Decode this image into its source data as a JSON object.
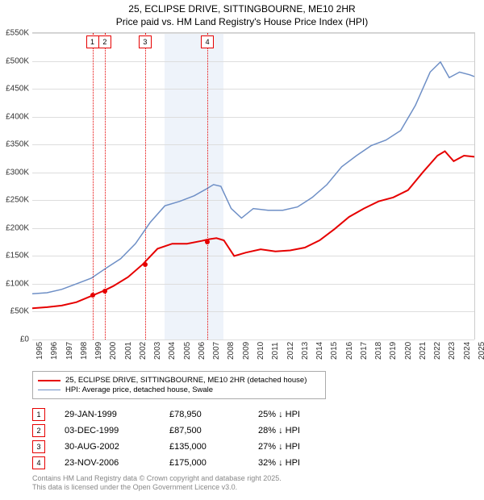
{
  "title_line1": "25, ECLIPSE DRIVE, SITTINGBOURNE, ME10 2HR",
  "title_line2": "Price paid vs. HM Land Registry's House Price Index (HPI)",
  "chart": {
    "type": "line",
    "background_color": "#ffffff",
    "grid_color": "#dddddd",
    "band_color": "#eef3fa",
    "x_years": [
      1995,
      1996,
      1997,
      1998,
      1999,
      2000,
      2001,
      2002,
      2003,
      2004,
      2005,
      2006,
      2007,
      2008,
      2009,
      2010,
      2011,
      2012,
      2013,
      2014,
      2015,
      2016,
      2017,
      2018,
      2019,
      2020,
      2021,
      2022,
      2023,
      2024,
      2025
    ],
    "ylim": [
      0,
      550000
    ],
    "ytick_step": 50000,
    "ytick_labels": [
      "£0",
      "£50K",
      "£100K",
      "£150K",
      "£200K",
      "£250K",
      "£300K",
      "£350K",
      "£400K",
      "£450K",
      "£500K",
      "£550K"
    ],
    "band_years": [
      2004,
      2005,
      2006,
      2007
    ],
    "series": [
      {
        "name": "property",
        "label": "25, ECLIPSE DRIVE, SITTINGBOURNE, ME10 2HR (detached house)",
        "color": "#e60000",
        "line_width": 2,
        "points": [
          [
            1995.0,
            56000
          ],
          [
            1996.0,
            58000
          ],
          [
            1997.0,
            61000
          ],
          [
            1998.0,
            67000
          ],
          [
            1999.0,
            78000
          ],
          [
            1999.9,
            88000
          ],
          [
            2000.5,
            96000
          ],
          [
            2001.5,
            112000
          ],
          [
            2002.5,
            135000
          ],
          [
            2003.5,
            163000
          ],
          [
            2004.5,
            172000
          ],
          [
            2005.5,
            172000
          ],
          [
            2006.5,
            177000
          ],
          [
            2007.0,
            180000
          ],
          [
            2007.5,
            182000
          ],
          [
            2008.0,
            178000
          ],
          [
            2008.7,
            150000
          ],
          [
            2009.5,
            156000
          ],
          [
            2010.5,
            162000
          ],
          [
            2011.5,
            158000
          ],
          [
            2012.5,
            160000
          ],
          [
            2013.5,
            165000
          ],
          [
            2014.5,
            178000
          ],
          [
            2015.5,
            198000
          ],
          [
            2016.5,
            220000
          ],
          [
            2017.5,
            235000
          ],
          [
            2018.5,
            248000
          ],
          [
            2019.5,
            255000
          ],
          [
            2020.5,
            268000
          ],
          [
            2021.5,
            300000
          ],
          [
            2022.5,
            330000
          ],
          [
            2023.0,
            338000
          ],
          [
            2023.6,
            320000
          ],
          [
            2024.3,
            330000
          ],
          [
            2025.0,
            328000
          ]
        ]
      },
      {
        "name": "hpi",
        "label": "HPI: Average price, detached house, Swale",
        "color": "#6e8fc6",
        "line_width": 1.5,
        "points": [
          [
            1995.0,
            82000
          ],
          [
            1996.0,
            84000
          ],
          [
            1997.0,
            90000
          ],
          [
            1998.0,
            100000
          ],
          [
            1999.0,
            110000
          ],
          [
            2000.0,
            128000
          ],
          [
            2001.0,
            145000
          ],
          [
            2002.0,
            172000
          ],
          [
            2003.0,
            210000
          ],
          [
            2004.0,
            240000
          ],
          [
            2005.0,
            248000
          ],
          [
            2006.0,
            258000
          ],
          [
            2006.8,
            270000
          ],
          [
            2007.3,
            278000
          ],
          [
            2007.8,
            275000
          ],
          [
            2008.5,
            235000
          ],
          [
            2009.2,
            218000
          ],
          [
            2010.0,
            235000
          ],
          [
            2011.0,
            232000
          ],
          [
            2012.0,
            232000
          ],
          [
            2013.0,
            238000
          ],
          [
            2014.0,
            255000
          ],
          [
            2015.0,
            278000
          ],
          [
            2016.0,
            310000
          ],
          [
            2017.0,
            330000
          ],
          [
            2018.0,
            348000
          ],
          [
            2019.0,
            358000
          ],
          [
            2020.0,
            375000
          ],
          [
            2021.0,
            420000
          ],
          [
            2022.0,
            480000
          ],
          [
            2022.7,
            498000
          ],
          [
            2023.3,
            470000
          ],
          [
            2024.0,
            480000
          ],
          [
            2024.7,
            475000
          ],
          [
            2025.0,
            472000
          ]
        ]
      }
    ],
    "sales": [
      {
        "idx": "1",
        "year": 1999.08,
        "price": 78950
      },
      {
        "idx": "2",
        "year": 1999.92,
        "price": 87500
      },
      {
        "idx": "3",
        "year": 2002.66,
        "price": 135000
      },
      {
        "idx": "4",
        "year": 2006.89,
        "price": 175000
      }
    ]
  },
  "legend_box_border": "#aaaaaa",
  "sales_table": [
    {
      "idx": "1",
      "date": "29-JAN-1999",
      "price": "£78,950",
      "delta": "25% ↓ HPI"
    },
    {
      "idx": "2",
      "date": "03-DEC-1999",
      "price": "£87,500",
      "delta": "28% ↓ HPI"
    },
    {
      "idx": "3",
      "date": "30-AUG-2002",
      "price": "£135,000",
      "delta": "27% ↓ HPI"
    },
    {
      "idx": "4",
      "date": "23-NOV-2006",
      "price": "£175,000",
      "delta": "32% ↓ HPI"
    }
  ],
  "footer_line1": "Contains HM Land Registry data © Crown copyright and database right 2025.",
  "footer_line2": "This data is licensed under the Open Government Licence v3.0."
}
